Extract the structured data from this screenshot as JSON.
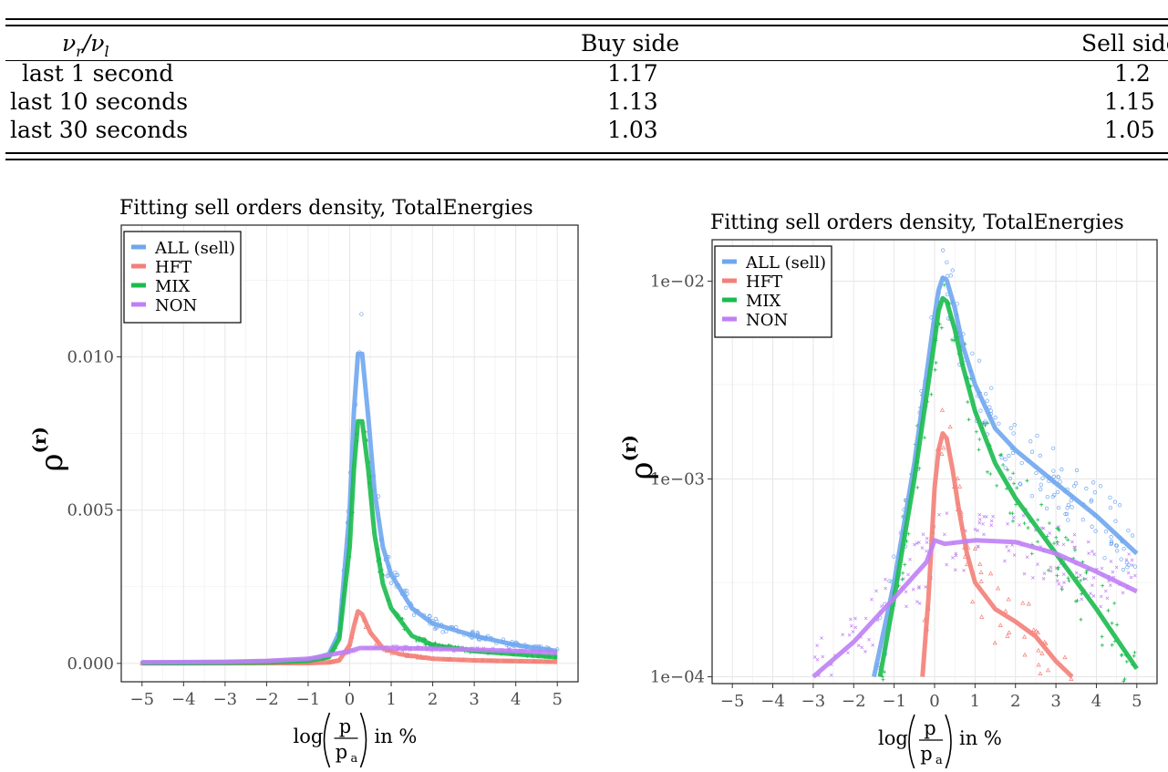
{
  "table": {
    "header": {
      "ratio_nu": "ν",
      "ratio_r": "r",
      "ratio_l": "l",
      "buy": "Buy side",
      "sell": "Sell side"
    },
    "rows": [
      {
        "label": "last 1 second",
        "buy": "1.17",
        "sell": "1.2"
      },
      {
        "label": "last 10 seconds",
        "buy": "1.13",
        "sell": "1.15"
      },
      {
        "label": "last 30 seconds",
        "buy": "1.03",
        "sell": "1.05"
      }
    ]
  },
  "colors": {
    "all": "#6fa6ef",
    "hft": "#f37f78",
    "mix": "#1bbb4e",
    "non": "#c07ff5"
  },
  "chart_data": [
    {
      "type": "line",
      "title": "Fitting sell orders density, TotalEnergies",
      "xlabel": "log(p/pa) in %",
      "xlabel_parts": {
        "log": "log",
        "num": "p",
        "den": "p",
        "den_sub": "a",
        "suffix": "in %"
      },
      "ylabel": "ρ(r)",
      "ylabel_parts": {
        "rho": "ρ",
        "sup": "(r)"
      },
      "yscale": "linear",
      "xlim": [
        -5.5,
        5.5
      ],
      "ylim": [
        -0.0006,
        0.0143
      ],
      "xticks": [
        -5,
        -4,
        -3,
        -2,
        -1,
        0,
        1,
        2,
        3,
        4,
        5
      ],
      "yticks": [
        0.0,
        0.005,
        0.01
      ],
      "ytick_labels": [
        "0.000",
        "0.005",
        "0.010"
      ],
      "grid": true,
      "legend_position": "top-left",
      "series": [
        {
          "name": "ALL (sell)",
          "key": "all",
          "x": [
            -5,
            -4,
            -3,
            -2,
            -1,
            -0.5,
            -0.25,
            0,
            0.1,
            0.2,
            0.3,
            0.45,
            0.6,
            0.8,
            1,
            1.5,
            2,
            3,
            4,
            5
          ],
          "y": [
            3e-05,
            3e-05,
            4e-05,
            6e-05,
            0.0001,
            0.0003,
            0.001,
            0.005,
            0.0082,
            0.0101,
            0.0101,
            0.008,
            0.0056,
            0.0038,
            0.0029,
            0.0018,
            0.0013,
            0.0009,
            0.0006,
            0.0004
          ]
        },
        {
          "name": "HFT",
          "key": "hft",
          "x": [
            -5,
            -1,
            -0.5,
            -0.25,
            0,
            0.1,
            0.2,
            0.3,
            0.5,
            0.8,
            1.2,
            2,
            3,
            5
          ],
          "y": [
            0,
            1e-05,
            3e-05,
            0.0001,
            0.0006,
            0.0012,
            0.0017,
            0.0016,
            0.001,
            0.0005,
            0.0003,
            0.00015,
            0.0001,
            5e-05
          ]
        },
        {
          "name": "MIX",
          "key": "mix",
          "x": [
            -5,
            -4,
            -3,
            -2,
            -1,
            -0.5,
            -0.25,
            0,
            0.1,
            0.2,
            0.3,
            0.45,
            0.6,
            0.8,
            1,
            1.5,
            2,
            3,
            4,
            5
          ],
          "y": [
            1e-05,
            1e-05,
            2e-05,
            3e-05,
            8e-05,
            0.0002,
            0.0008,
            0.0038,
            0.0063,
            0.0079,
            0.0079,
            0.0063,
            0.0042,
            0.0026,
            0.0018,
            0.0009,
            0.0006,
            0.0004,
            0.0003,
            0.0002
          ]
        },
        {
          "name": "NON",
          "key": "non",
          "x": [
            -5,
            -3,
            -2,
            -1,
            0,
            0.25,
            1,
            2,
            3,
            4,
            5
          ],
          "y": [
            3e-05,
            5e-05,
            8e-05,
            0.00015,
            0.0004,
            0.0005,
            0.0005,
            0.00048,
            0.00045,
            0.0004,
            0.00035
          ]
        }
      ]
    },
    {
      "type": "line",
      "title": "Fitting sell orders density, TotalEnergies",
      "xlabel": "log(p/pa) in %",
      "xlabel_parts": {
        "log": "log",
        "num": "p",
        "den": "p",
        "den_sub": "a",
        "suffix": "in %"
      },
      "ylabel": "ρ(r)",
      "ylabel_parts": {
        "rho": "ρ",
        "sup": "(r)"
      },
      "yscale": "log",
      "xlim": [
        -5.5,
        5.5
      ],
      "ylim": [
        9.24e-05,
        0.0162
      ],
      "xticks": [
        -5,
        -4,
        -3,
        -2,
        -1,
        0,
        1,
        2,
        3,
        4,
        5
      ],
      "yticks": [
        0.0001,
        0.001,
        0.01
      ],
      "ytick_labels": [
        "1e−04",
        "1e−03",
        "1e−02"
      ],
      "grid": true,
      "legend_position": "top-left",
      "series": [
        {
          "name": "ALL (sell)",
          "key": "all",
          "x": [
            -1.5,
            -1,
            -0.5,
            0,
            0.1,
            0.2,
            0.3,
            0.5,
            0.7,
            1,
            1.5,
            2,
            3,
            4,
            5
          ],
          "y": [
            0.0001,
            0.0003,
            0.0012,
            0.0067,
            0.009,
            0.0104,
            0.0101,
            0.0073,
            0.0047,
            0.003,
            0.0018,
            0.0014,
            0.00095,
            0.00065,
            0.00042
          ]
        },
        {
          "name": "HFT",
          "key": "hft",
          "x": [
            -0.3,
            -0.15,
            0,
            0.1,
            0.2,
            0.3,
            0.45,
            0.6,
            0.8,
            1,
            1.5,
            2,
            2.5,
            3,
            3.4
          ],
          "y": [
            0.0001,
            0.00025,
            0.0009,
            0.0014,
            0.0017,
            0.0016,
            0.0011,
            0.0007,
            0.00042,
            0.0003,
            0.00022,
            0.00019,
            0.00016,
            0.00012,
            0.0001
          ]
        },
        {
          "name": "MIX",
          "key": "mix",
          "x": [
            -1.35,
            -1,
            -0.5,
            0,
            0.1,
            0.2,
            0.3,
            0.5,
            0.7,
            1,
            1.5,
            2,
            3,
            4,
            5
          ],
          "y": [
            0.0001,
            0.00025,
            0.001,
            0.005,
            0.0071,
            0.0082,
            0.0079,
            0.0057,
            0.0037,
            0.0022,
            0.0012,
            0.0008,
            0.00042,
            0.00022,
            0.00011
          ]
        },
        {
          "name": "NON",
          "key": "non",
          "x": [
            -3,
            -2,
            -1,
            -0.2,
            0,
            0.25,
            1,
            2,
            3,
            4,
            5
          ],
          "y": [
            0.0001,
            0.00015,
            0.00025,
            0.00038,
            0.00049,
            0.00047,
            0.00049,
            0.00048,
            0.00042,
            0.00034,
            0.00027
          ]
        }
      ]
    }
  ]
}
